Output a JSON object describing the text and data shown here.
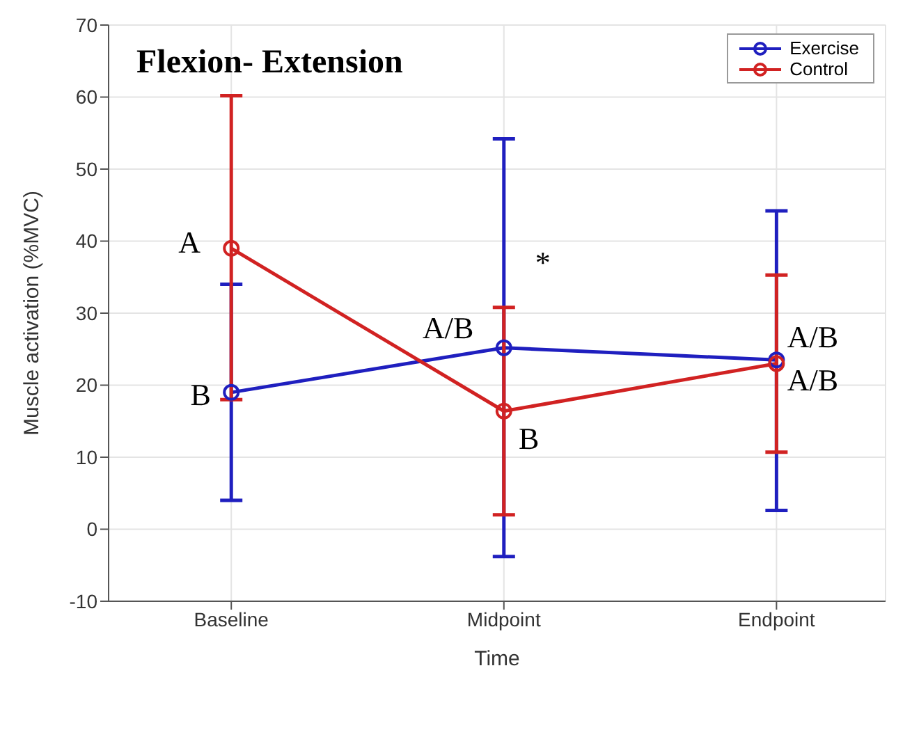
{
  "chart_data": {
    "type": "line",
    "title": "Flexion- Extension",
    "xlabel": "Time",
    "ylabel": "Muscle activation (%MVC)",
    "categories": [
      "Baseline",
      "Midpoint",
      "Endpoint"
    ],
    "series": [
      {
        "name": "Exercise",
        "color": "#1f1fbf",
        "values": [
          19,
          25.2,
          23.5
        ],
        "errors": [
          [
            4,
            34
          ],
          [
            -3.8,
            54.2
          ],
          [
            2.6,
            44.2
          ]
        ]
      },
      {
        "name": "Control",
        "color": "#d12222",
        "values": [
          39,
          16.4,
          23
        ],
        "errors": [
          [
            18,
            60.2
          ],
          [
            2,
            30.8
          ],
          [
            10.7,
            35.3
          ]
        ]
      }
    ],
    "ylim": [
      -10,
      70
    ],
    "yticks": [
      -10,
      0,
      10,
      20,
      30,
      40,
      50,
      60,
      70
    ],
    "grid": true,
    "legend": "top right",
    "marker": "circle",
    "line_style": "solid",
    "annotations": [
      {
        "text": "A",
        "x": "Baseline",
        "y": 39
      },
      {
        "text": "B",
        "x": "Baseline",
        "y": 19
      },
      {
        "text": "A/B",
        "x": "Midpoint",
        "y": 25.2
      },
      {
        "text": "B",
        "x": "Midpoint",
        "y": 16.4
      },
      {
        "text": "*",
        "x": "Midpoint",
        "y": 30.8
      },
      {
        "text": "A/B",
        "x": "Endpoint",
        "y": 23.5
      },
      {
        "text": "A/B",
        "x": "Endpoint",
        "y": 23
      }
    ]
  }
}
